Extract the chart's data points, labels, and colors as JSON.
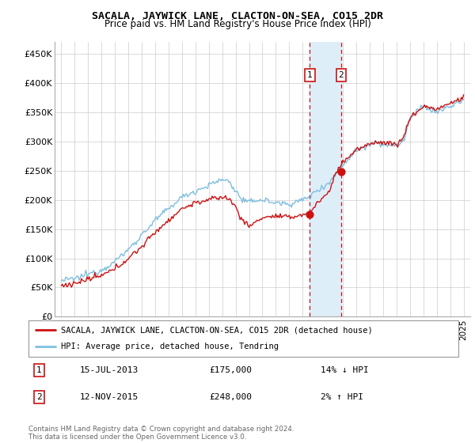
{
  "title": "SACALA, JAYWICK LANE, CLACTON-ON-SEA, CO15 2DR",
  "subtitle": "Price paid vs. HM Land Registry's House Price Index (HPI)",
  "legend_line1": "SACALA, JAYWICK LANE, CLACTON-ON-SEA, CO15 2DR (detached house)",
  "legend_line2": "HPI: Average price, detached house, Tendring",
  "transaction1_date": "15-JUL-2013",
  "transaction1_price": "£175,000",
  "transaction1_hpi": "14% ↓ HPI",
  "transaction2_date": "12-NOV-2015",
  "transaction2_price": "£248,000",
  "transaction2_hpi": "2% ↑ HPI",
  "footer": "Contains HM Land Registry data © Crown copyright and database right 2024.\nThis data is licensed under the Open Government Licence v3.0.",
  "hpi_color": "#7fbfdf",
  "price_color": "#cc1111",
  "highlight_color": "#ddeef8",
  "marker_color": "#cc1111",
  "transaction1_x": 2013.54,
  "transaction2_x": 2015.87,
  "transaction1_y": 175000,
  "transaction2_y": 248000,
  "ylim": [
    0,
    470000
  ],
  "xlim_start": 1994.5,
  "xlim_end": 2025.5,
  "yticks": [
    0,
    50000,
    100000,
    150000,
    200000,
    250000,
    300000,
    350000,
    400000,
    450000
  ],
  "ytick_labels": [
    "£0",
    "£50K",
    "£100K",
    "£150K",
    "£200K",
    "£250K",
    "£300K",
    "£350K",
    "£400K",
    "£450K"
  ],
  "xticks": [
    1995,
    1996,
    1997,
    1998,
    1999,
    2000,
    2001,
    2002,
    2003,
    2004,
    2005,
    2006,
    2007,
    2008,
    2009,
    2010,
    2011,
    2012,
    2013,
    2014,
    2015,
    2016,
    2017,
    2018,
    2019,
    2020,
    2021,
    2022,
    2023,
    2024,
    2025
  ]
}
